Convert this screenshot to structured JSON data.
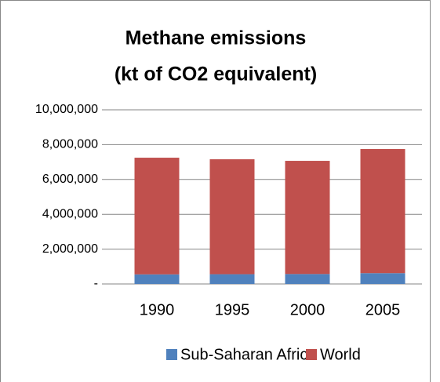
{
  "chart_data": {
    "type": "stacked_bar",
    "title": [
      "Methane emissions",
      "(kt of CO2 equivalent)"
    ],
    "categories": [
      "1990",
      "1995",
      "2000",
      "2005"
    ],
    "series": [
      {
        "name": "Sub-Saharan Africa",
        "color": "#4f81bd",
        "values": [
          550000,
          560000,
          570000,
          620000
        ]
      },
      {
        "name": "World",
        "color": "#c0504d",
        "values": [
          6700000,
          6600000,
          6500000,
          7130000
        ]
      }
    ],
    "ylim": [
      0,
      10000000
    ],
    "yticks": [
      {
        "value": 0,
        "label": "-"
      },
      {
        "value": 2000000,
        "label": "2,000,000"
      },
      {
        "value": 4000000,
        "label": "4,000,000"
      },
      {
        "value": 6000000,
        "label": "6,000,000"
      },
      {
        "value": 8000000,
        "label": "8,000,000"
      },
      {
        "value": 10000000,
        "label": "10,000,000"
      }
    ],
    "grid": true,
    "legend": "bottom"
  }
}
